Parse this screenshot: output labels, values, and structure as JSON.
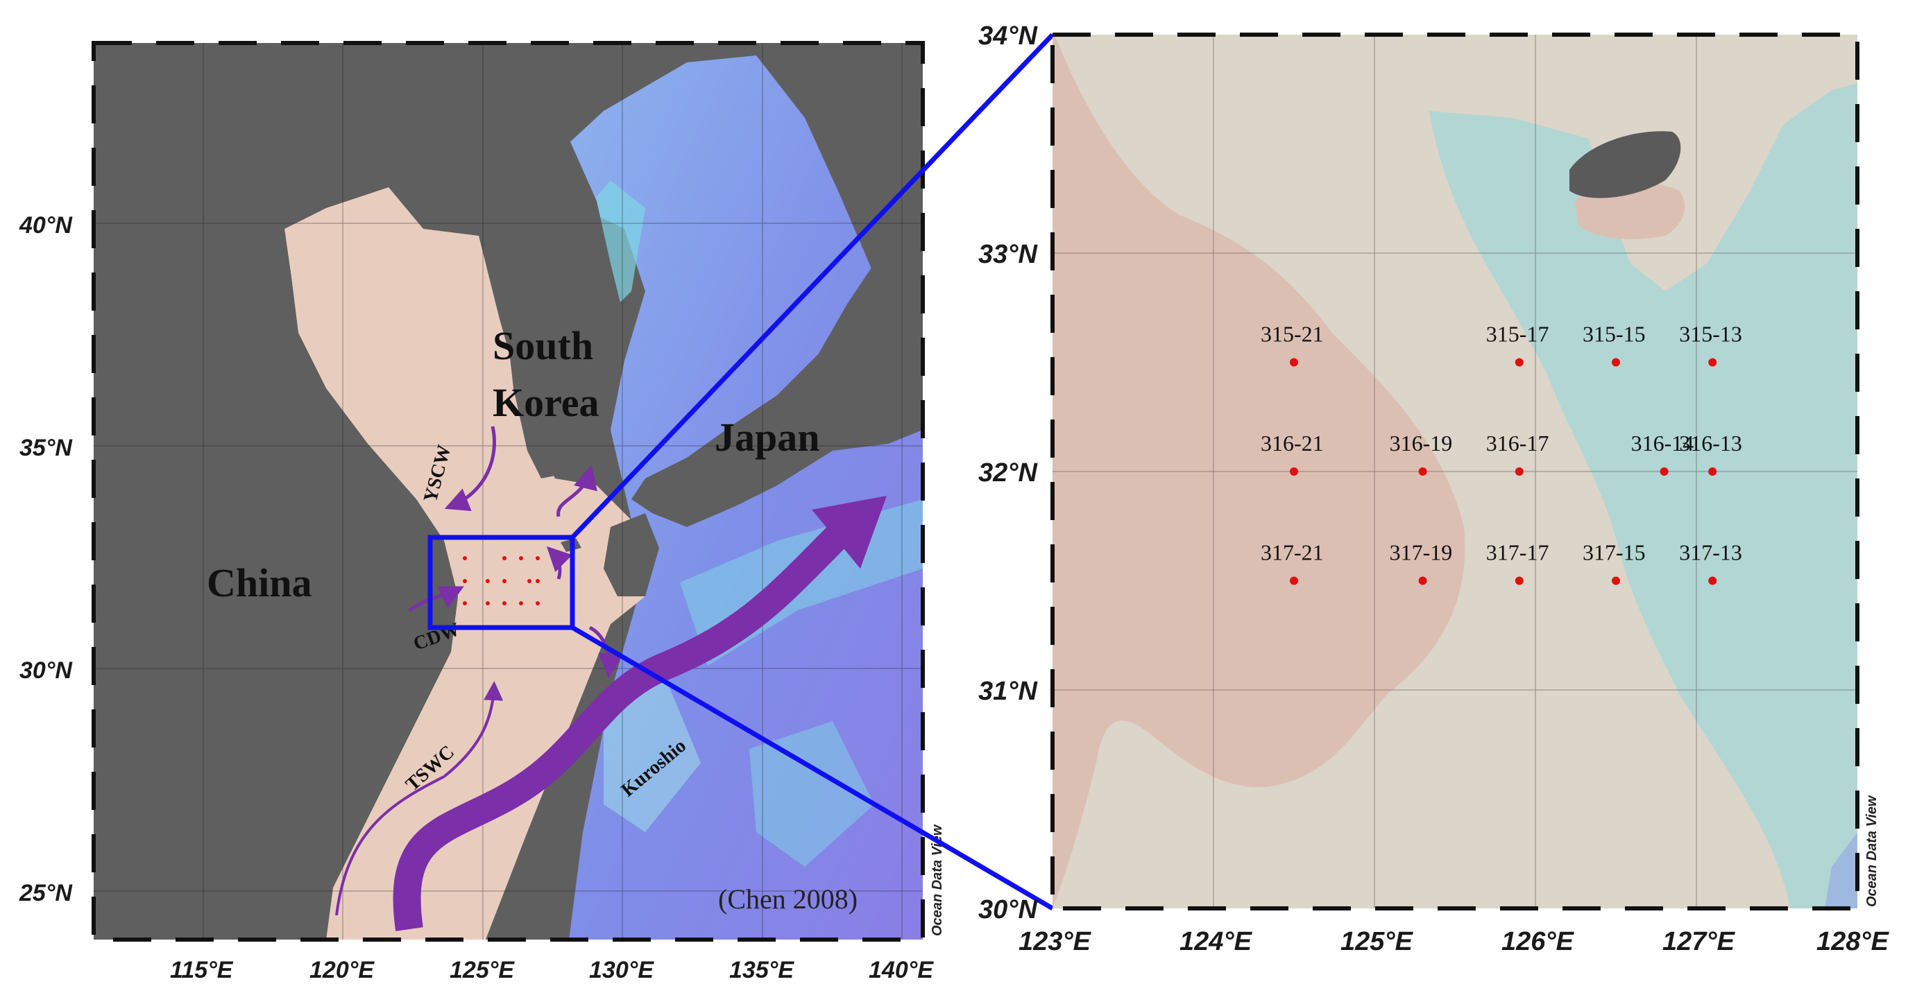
{
  "left_map": {
    "lat_ticks": [
      "40°N",
      "35°N",
      "30°N",
      "25°N"
    ],
    "lon_ticks": [
      "115°E",
      "120°E",
      "125°E",
      "130°E",
      "135°E",
      "140°E"
    ],
    "countries": {
      "china": "China",
      "korea_line1": "South",
      "korea_line2": "Korea",
      "japan": "Japan"
    },
    "currents": {
      "yscw": "YSCW",
      "cdw": "CDW",
      "tswc": "TSWC",
      "kuroshio": "Kuroshio"
    },
    "citation": "(Chen 2008)",
    "watermark": "Ocean Data View",
    "colors": {
      "land": "#5f5f5f",
      "shelf": "#e8cdbf",
      "deep": "#7f8ee8",
      "current": "#7b2fa8"
    }
  },
  "right_map": {
    "lat_ticks": [
      "34°N",
      "33°N",
      "32°N",
      "31°N",
      "30°N"
    ],
    "lon_ticks": [
      "123°E",
      "124°E",
      "125°E",
      "126°E",
      "127°E",
      "128°E"
    ],
    "watermark": "Ocean Data View",
    "stations": [
      {
        "label": "315-21",
        "lon": 124.5,
        "lat": 32.5
      },
      {
        "label": "315-17",
        "lon": 125.9,
        "lat": 32.5
      },
      {
        "label": "315-15",
        "lon": 126.5,
        "lat": 32.5
      },
      {
        "label": "315-13",
        "lon": 127.1,
        "lat": 32.5
      },
      {
        "label": "316-21",
        "lon": 124.5,
        "lat": 32.0
      },
      {
        "label": "316-19",
        "lon": 125.3,
        "lat": 32.0
      },
      {
        "label": "316-17",
        "lon": 125.9,
        "lat": 32.0
      },
      {
        "label": "316-14",
        "lon": 126.8,
        "lat": 32.0
      },
      {
        "label": "316-13",
        "lon": 127.1,
        "lat": 32.0
      },
      {
        "label": "317-21",
        "lon": 124.5,
        "lat": 31.5
      },
      {
        "label": "317-19",
        "lon": 125.3,
        "lat": 31.5
      },
      {
        "label": "317-17",
        "lon": 125.9,
        "lat": 31.5
      },
      {
        "label": "317-15",
        "lon": 126.5,
        "lat": 31.5
      },
      {
        "label": "317-13",
        "lon": 127.1,
        "lat": 31.5
      }
    ],
    "colors": {
      "station": "#e01010",
      "pink": "#dcbfb3",
      "beige": "#dcd5c9",
      "teal": "#b2d6d3",
      "island": "#5a5a5a"
    }
  },
  "connector_color": "#1010ee"
}
